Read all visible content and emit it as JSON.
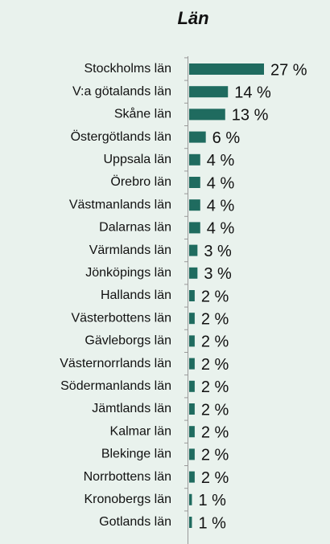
{
  "chart_data": {
    "type": "bar",
    "orientation": "horizontal",
    "title": "Län",
    "categories": [
      "Stockholms län",
      "V:a götalands län",
      "Skåne län",
      "Östergötlands län",
      "Uppsala län",
      "Örebro län",
      "Västmanlands län",
      "Dalarnas län",
      "Värmlands län",
      "Jönköpings län",
      "Hallands län",
      "Västerbottens län",
      "Gävleborgs län",
      "Västernorrlands län",
      "Södermanlands län",
      "Jämtlands län",
      "Kalmar län",
      "Blekinge län",
      "Norrbottens län",
      "Kronobergs län",
      "Gotlands län"
    ],
    "values": [
      27,
      14,
      13,
      6,
      4,
      4,
      4,
      4,
      3,
      3,
      2,
      2,
      2,
      2,
      2,
      2,
      2,
      2,
      2,
      1,
      1
    ],
    "value_labels": [
      "27 %",
      "14 %",
      "13 %",
      "6 %",
      "4 %",
      "4 %",
      "4 %",
      "4 %",
      "3 %",
      "3 %",
      "2 %",
      "2 %",
      "2 %",
      "2 %",
      "2 %",
      "2 %",
      "2 %",
      "2 %",
      "2 %",
      "1 %",
      "1 %"
    ],
    "color": "#1f6b5f"
  }
}
